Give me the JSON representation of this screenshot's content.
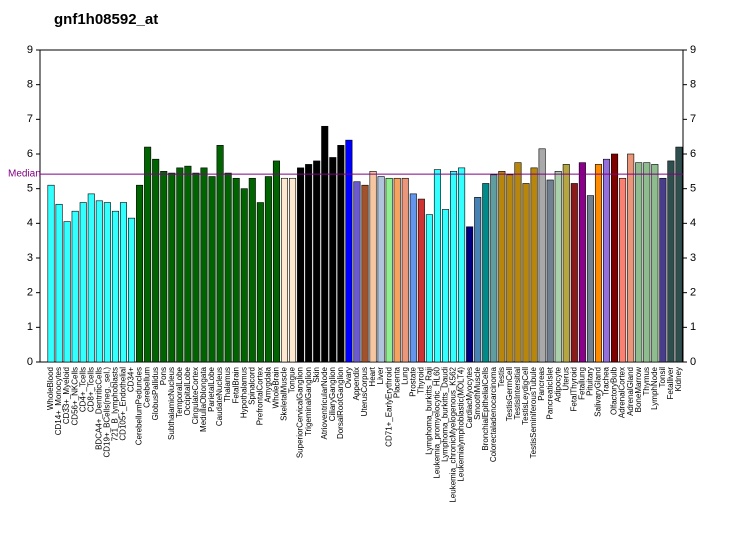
{
  "chart_data": {
    "type": "bar",
    "title": "gnf1h08592_at",
    "categories": [
      "WholeBlood",
      "CD14+_Monocytes",
      "CD33+_Myeloid",
      "CD56+_NKCells",
      "CD4+_Tcells",
      "CD8+_Tcells",
      "BDCA4+_DentriticCells",
      "CD19+_BCells(neg._sel.)",
      "721_B_lymphoblasts",
      "CD105+_Endothelial",
      "CD34+",
      "CerebellumPeduncles",
      "Cerebellum",
      "GlobusPallidus",
      "Pons",
      "SubthalamicNucleus",
      "TemporalLobe",
      "OccipitalLobe",
      "CingulateCortex",
      "MedullaOblongata",
      "ParietalLobe",
      "CaudateNucleus",
      "Thalamus",
      "FetalBrain",
      "Hypothalamus",
      "Spinalcord",
      "PrefrontalCortex",
      "Amygdala",
      "WholeBrain",
      "SkeletalMuscle",
      "Tongue",
      "SuperiorCervicalGanglion",
      "TrigeminalGanglion",
      "Skin",
      "AtrioventricularNode",
      "CiliaryGanglion",
      "DorsalRootGanglion",
      "Ovary",
      "Appendix",
      "UterusCorpus",
      "Heart",
      "Liver",
      "CD71+_EarlyErythroid",
      "Placenta",
      "Lung",
      "Prostate",
      "Thyroid",
      "Lymphoma_burkitts_Raji",
      "Leukemia_promyelocytic_HL60",
      "Lymphoma_burkitts_Daudi",
      "Leukemia_chronicMyelogenous_K562",
      "Leukemialymphoblastic(MOLT4)",
      "CardiacMyocytes",
      "SmoothMuscle",
      "BronchialEpithelialCells",
      "Colorectaladenocarcinoma",
      "Testis",
      "TestisGermCell",
      "TestisIntersitial",
      "TestisLeydigCell",
      "TestisSeminiferousTubule",
      "Pancreas",
      "PancreaticIslet",
      "Adipocyte",
      "Uterus",
      "FetalThyroid",
      "Fetallung",
      "Pituitary",
      "SalivaryGland",
      "Trachea",
      "OlfactoryBulb",
      "AdrenalCortex",
      "AdrenalGland",
      "BoneMarrow",
      "Thymus",
      "LymphNode",
      "Tonsil",
      "Fetalliver",
      "Kidney"
    ],
    "values": [
      5.1,
      4.55,
      4.05,
      4.35,
      4.6,
      4.85,
      4.65,
      4.6,
      4.35,
      4.6,
      4.15,
      5.1,
      6.2,
      5.85,
      5.5,
      5.45,
      5.6,
      5.65,
      5.45,
      5.6,
      5.35,
      6.25,
      5.45,
      5.3,
      5.0,
      5.3,
      4.6,
      5.35,
      5.8,
      5.3,
      5.3,
      5.6,
      5.7,
      5.8,
      6.8,
      5.9,
      6.25,
      6.4,
      5.2,
      5.1,
      5.5,
      5.35,
      5.3,
      5.3,
      5.3,
      4.85,
      4.7,
      4.25,
      5.55,
      4.4,
      5.5,
      5.6,
      3.9,
      4.75,
      5.15,
      5.4,
      5.5,
      5.4,
      5.75,
      5.15,
      5.6,
      6.15,
      5.25,
      5.5,
      5.7,
      5.15,
      5.75,
      4.8,
      5.7,
      5.85,
      6.0,
      5.3,
      6.0,
      5.75,
      5.75,
      5.7,
      5.3,
      5.8,
      6.2
    ],
    "colors": [
      "#33ffff",
      "#33ffff",
      "#33ffff",
      "#33ffff",
      "#33ffff",
      "#33ffff",
      "#33ffff",
      "#33ffff",
      "#33ffff",
      "#33ffff",
      "#33ffff",
      "#006400",
      "#006400",
      "#006400",
      "#006400",
      "#006400",
      "#006400",
      "#006400",
      "#006400",
      "#006400",
      "#006400",
      "#006400",
      "#006400",
      "#006400",
      "#006400",
      "#006400",
      "#006400",
      "#006400",
      "#006400",
      "#fde9d0",
      "#fde9d0",
      "#000000",
      "#000000",
      "#000000",
      "#000000",
      "#000000",
      "#000000",
      "#0000ff",
      "#6a5acd",
      "#a0522d",
      "#f5c6a0",
      "#b0c4de",
      "#90ee90",
      "#f4a460",
      "#e9967a",
      "#6495ed",
      "#cd3333",
      "#33ffff",
      "#33ffff",
      "#33ffff",
      "#33ffff",
      "#33ffff",
      "#000080",
      "#4682b4",
      "#008b8b",
      "#5f9ea0",
      "#b8860b",
      "#b8860b",
      "#b8860b",
      "#b8860b",
      "#b8860b",
      "#a9a9a9",
      "#708090",
      "#a9d0a9",
      "#b5a642",
      "#8b1a1a",
      "#8b008b",
      "#708090",
      "#ff8c00",
      "#9370db",
      "#800000",
      "#fa8072",
      "#e9967a",
      "#8fbc8f",
      "#8fbc8f",
      "#8fbc8f",
      "#483d8b",
      "#2f4f4f",
      "#2f4f4f"
    ],
    "ylim": [
      0,
      9
    ],
    "yticks": [
      0,
      1,
      2,
      3,
      4,
      5,
      6,
      7,
      8,
      9
    ],
    "median": 5.42,
    "median_label": "Median",
    "median_color": "#800080"
  }
}
